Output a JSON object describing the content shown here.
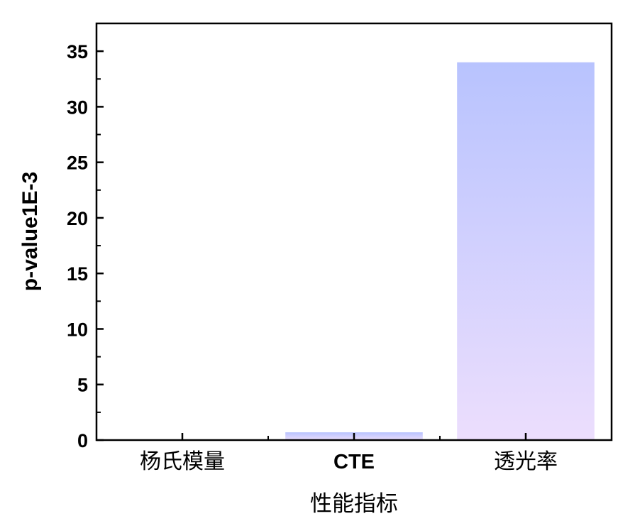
{
  "chart_data": {
    "type": "bar",
    "categories": [
      "杨氏模量",
      "CTE",
      "透光率"
    ],
    "values": [
      0.0,
      0.7,
      34.0
    ],
    "xlabel": "性能指标",
    "ylabel": "p-value1E-3",
    "ylim": [
      0,
      37.5
    ],
    "yticks": [
      0,
      5,
      10,
      15,
      20,
      25,
      30,
      35
    ],
    "grid": false,
    "legend": "none",
    "bar_gradient": {
      "top": "#b8c3fe",
      "bottom": "#ecdefd"
    }
  }
}
